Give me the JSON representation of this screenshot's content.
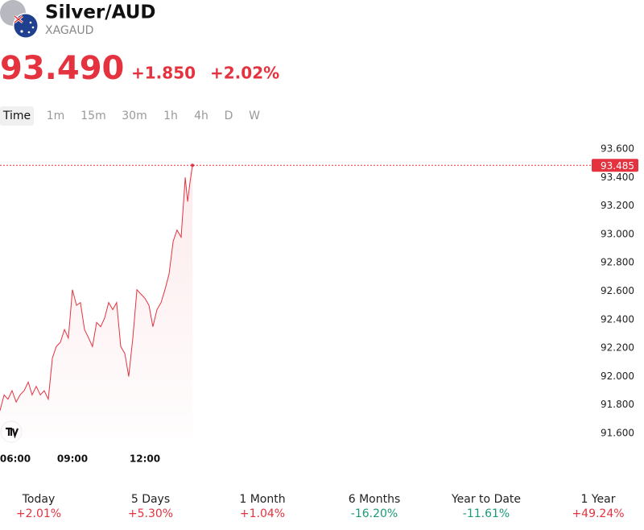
{
  "header": {
    "title": "Silver/AUD",
    "symbol": "XAGAUD",
    "price": "93.490",
    "change": "+1.850",
    "change_percent": "+2.02%",
    "color": "#e5323f"
  },
  "tabs": [
    "Time",
    "1m",
    "15m",
    "30m",
    "1h",
    "4h",
    "D",
    "W"
  ],
  "chart_data": {
    "type": "line",
    "x": [
      6,
      6.17,
      6.33,
      6.5,
      6.67,
      6.83,
      7,
      7.17,
      7.33,
      7.5,
      7.67,
      7.83,
      8,
      8.17,
      8.33,
      8.5,
      8.67,
      8.83,
      9,
      9.17,
      9.33,
      9.5,
      9.67,
      9.83,
      10,
      10.17,
      10.33,
      10.5,
      10.67,
      10.83,
      11,
      11.17,
      11.33,
      11.5,
      11.67,
      11.83,
      12,
      12.17,
      12.33,
      12.5,
      12.67,
      12.83,
      13,
      13.17,
      13.33,
      13.5,
      13.67,
      13.77,
      13.87,
      13.97
    ],
    "series": [
      {
        "color": "#e5323f",
        "values": [
          91.76,
          91.87,
          91.84,
          91.9,
          91.82,
          91.87,
          91.9,
          91.96,
          91.87,
          91.93,
          91.87,
          91.9,
          91.84,
          92.13,
          92.21,
          92.24,
          92.33,
          92.27,
          92.61,
          92.5,
          92.52,
          92.33,
          92.27,
          92.21,
          92.38,
          92.35,
          92.41,
          92.52,
          92.47,
          92.52,
          92.21,
          92.16,
          92,
          92.27,
          92.61,
          92.58,
          92.55,
          92.5,
          92.35,
          92.47,
          92.52,
          92.61,
          92.72,
          92.95,
          93.03,
          92.98,
          93.4,
          93.23,
          93.37,
          93.485
        ]
      }
    ],
    "last_price": 93.485,
    "xlim": [
      6,
      30.5
    ],
    "xticks": [
      {
        "value": 6,
        "label": "06:00"
      },
      {
        "value": 9,
        "label": "09:00"
      },
      {
        "value": 12,
        "label": "12:00"
      }
    ],
    "ylim": [
      91.56,
      93.685
    ],
    "yticks": [
      {
        "value": 91.6,
        "label": "91.600"
      },
      {
        "value": 91.8,
        "label": "91.800"
      },
      {
        "value": 92,
        "label": "92.000"
      },
      {
        "value": 92.2,
        "label": "92.200"
      },
      {
        "value": 92.4,
        "label": "92.400"
      },
      {
        "value": 92.6,
        "label": "92.600"
      },
      {
        "value": 92.8,
        "label": "92.800"
      },
      {
        "value": 93,
        "label": "93.000"
      },
      {
        "value": 93.2,
        "label": "93.200"
      },
      {
        "value": 93.4,
        "label": "93.400"
      },
      {
        "value": 93.6,
        "label": "93.600"
      }
    ]
  },
  "performance": [
    {
      "label": "Today",
      "value": "+2.01%",
      "color": "#e5323f"
    },
    {
      "label": "5 Days",
      "value": "+5.30%",
      "color": "#e5323f"
    },
    {
      "label": "1 Month",
      "value": "+1.04%",
      "color": "#e5323f"
    },
    {
      "label": "6 Months",
      "value": "-16.20%",
      "color": "#1a9a78"
    },
    {
      "label": "Year to Date",
      "value": "-11.61%",
      "color": "#1a9a78"
    },
    {
      "label": "1 Year",
      "value": "+49.24%",
      "color": "#e5323f"
    }
  ]
}
